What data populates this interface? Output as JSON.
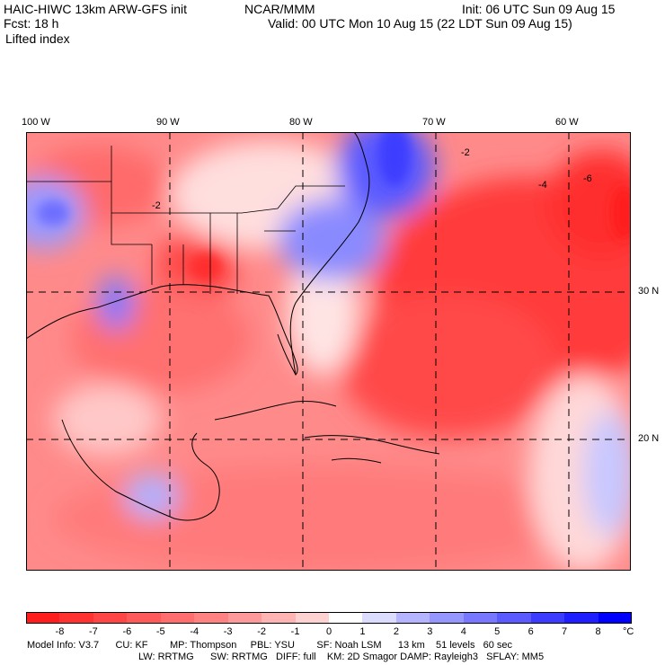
{
  "header": {
    "model_title": "HAIC-HIWC 13km ARW-GFS init",
    "org": "NCAR/MMM",
    "init": "Init: 06 UTC Sun 09 Aug 15",
    "fcst": "Fcst:   18 h",
    "valid": "Valid: 00 UTC Mon 10 Aug 15 (22 LDT Sun 09 Aug 15)",
    "field": "Lifted index"
  },
  "map": {
    "lon_labels": [
      "100 W",
      "90 W",
      "80 W",
      "70 W",
      "60 W"
    ],
    "lat_labels": [
      "30 N",
      "20 N"
    ],
    "contour_labels": [
      "-2",
      "-4",
      "-6",
      "-2"
    ]
  },
  "colorbar": {
    "ticks": [
      "-8",
      "-7",
      "-6",
      "-5",
      "-4",
      "-3",
      "-2",
      "-1",
      "0",
      "1",
      "2",
      "3",
      "4",
      "5",
      "6",
      "7",
      "8"
    ],
    "unit": "°C",
    "colors": [
      "#ff1e1e",
      "#ff3232",
      "#ff4646",
      "#ff5a5a",
      "#ff6e6e",
      "#ff8282",
      "#ff9a9a",
      "#ffb4b4",
      "#ffd2d2",
      "#ffffff",
      "#dcdcff",
      "#b4b4ff",
      "#9696ff",
      "#7878ff",
      "#5a5aff",
      "#3c3cff",
      "#1e1eff",
      "#0000ff"
    ]
  },
  "model_info": {
    "line1": "Model Info: V3.7      CU: KF        MP: Thompson     PBL: YSU        SF: Noah LSM      13 km    51 levels   60 sec",
    "line2": "LW: RRTMG      SW: RRTMG   DIFF: full    KM: 2D Smagor DAMP: Rayleigh3   SFLAY: MM5"
  }
}
